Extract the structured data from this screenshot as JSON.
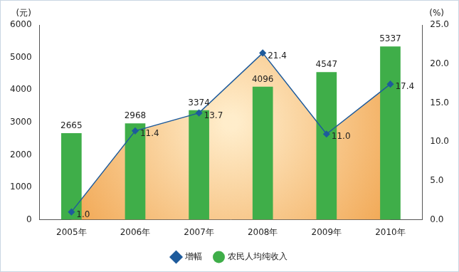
{
  "chart_data": {
    "type": "bar",
    "categories": [
      "2005年",
      "2006年",
      "2007年",
      "2008年",
      "2009年",
      "2010年"
    ],
    "ylabel": "(元)",
    "y2label": "(%)",
    "ylim": [
      0,
      6000
    ],
    "yticks": [
      0,
      1000,
      2000,
      3000,
      4000,
      5000,
      6000
    ],
    "y2lim": [
      0,
      25
    ],
    "y2ticks": [
      {
        "value": 0,
        "label": "0.0"
      },
      {
        "value": 5,
        "label": "5.0"
      },
      {
        "value": 10,
        "label": "10.0"
      },
      {
        "value": 15,
        "label": "15.0"
      },
      {
        "value": 20,
        "label": "20.0"
      },
      {
        "value": 25,
        "label": "25.0"
      }
    ],
    "grid": false,
    "legend": "bottom",
    "data_labels": true,
    "series": [
      {
        "name": "农民人均纯收入",
        "type": "bar",
        "color": "#3fae49",
        "marker": "circle",
        "values": [
          2665,
          2968,
          3374,
          4096,
          4547,
          5337
        ]
      },
      {
        "name": "增幅",
        "type": "line",
        "axis": "y2",
        "color": "#1e5b9c",
        "marker": "diamond",
        "values": [
          1.0,
          11.4,
          13.7,
          21.4,
          11.0,
          17.4
        ],
        "value_labels": [
          "1.0",
          "11.4",
          "13.7",
          "21.4",
          "11.0",
          "17.4"
        ]
      }
    ]
  }
}
